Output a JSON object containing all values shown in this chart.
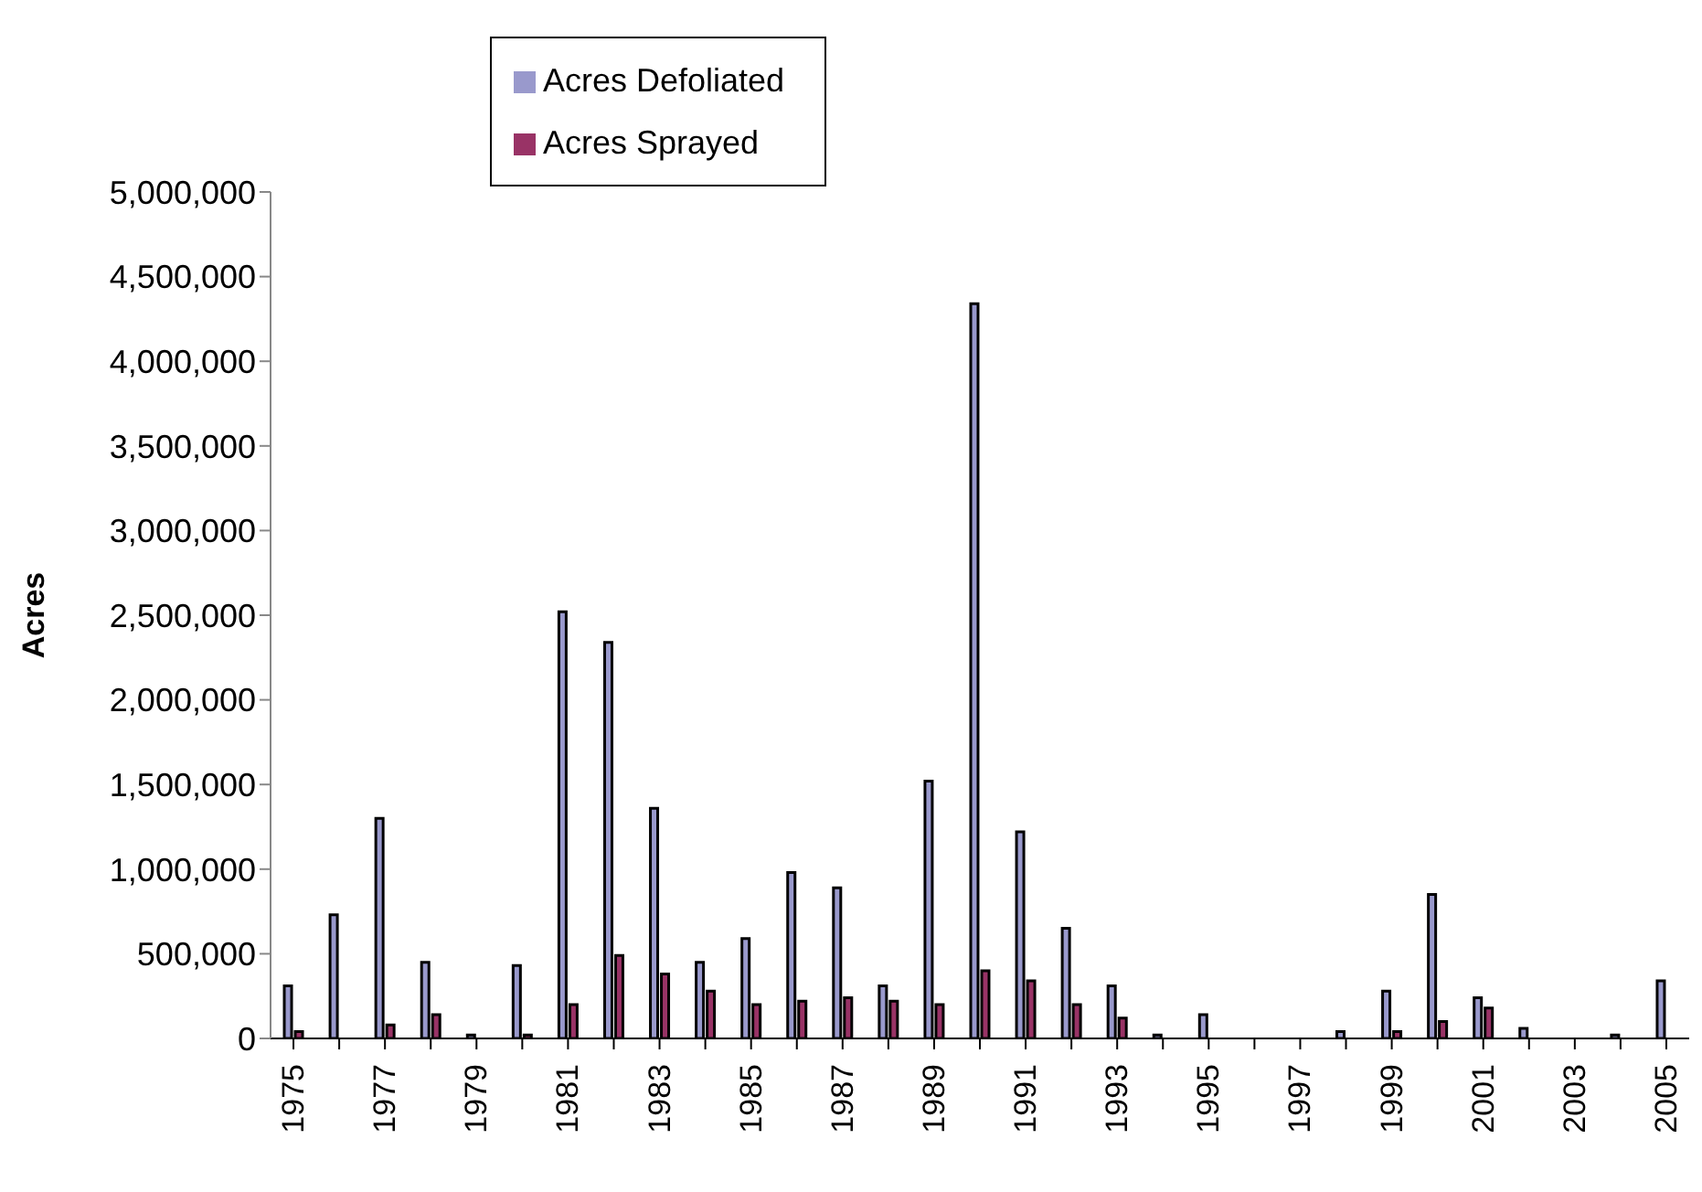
{
  "chart_data": {
    "type": "bar",
    "ylabel": "Acres",
    "categories": [
      "1975",
      null,
      "1977",
      null,
      "1979",
      null,
      "1981",
      null,
      "1983",
      null,
      "1985",
      null,
      "1987",
      null,
      "1989",
      null,
      "1991",
      null,
      "1993",
      null,
      "1995",
      null,
      "1997",
      null,
      "1999",
      null,
      "2001",
      null,
      "2003",
      null,
      "2005"
    ],
    "series": [
      {
        "name": "Acres Defoliated",
        "color": "#9999cc",
        "values": [
          310000,
          730000,
          1300000,
          450000,
          20000,
          430000,
          2520000,
          2340000,
          1360000,
          450000,
          590000,
          980000,
          890000,
          310000,
          1520000,
          4340000,
          1220000,
          650000,
          310000,
          20000,
          140000,
          0,
          0,
          40000,
          280000,
          850000,
          240000,
          60000,
          0,
          20000,
          340000
        ]
      },
      {
        "name": "Acres Sprayed",
        "color": "#993366",
        "values": [
          40000,
          0,
          80000,
          140000,
          0,
          20000,
          200000,
          490000,
          380000,
          280000,
          200000,
          220000,
          240000,
          220000,
          200000,
          400000,
          340000,
          200000,
          120000,
          0,
          0,
          0,
          0,
          0,
          40000,
          100000,
          180000,
          0,
          0,
          0,
          0
        ]
      }
    ],
    "ylim": [
      0,
      5000000
    ],
    "yticks": [
      {
        "value": 0,
        "label": "0"
      },
      {
        "value": 500000,
        "label": "500,000"
      },
      {
        "value": 1000000,
        "label": "1,000,000"
      },
      {
        "value": 1500000,
        "label": "1,500,000"
      },
      {
        "value": 2000000,
        "label": "2,000,000"
      },
      {
        "value": 2500000,
        "label": "2,500,000"
      },
      {
        "value": 3000000,
        "label": "3,000,000"
      },
      {
        "value": 3500000,
        "label": "3,500,000"
      },
      {
        "value": 4000000,
        "label": "4,000,000"
      },
      {
        "value": 4500000,
        "label": "4,500,000"
      },
      {
        "value": 5000000,
        "label": "5,000,000"
      }
    ],
    "grid": false,
    "legend": "top left"
  }
}
